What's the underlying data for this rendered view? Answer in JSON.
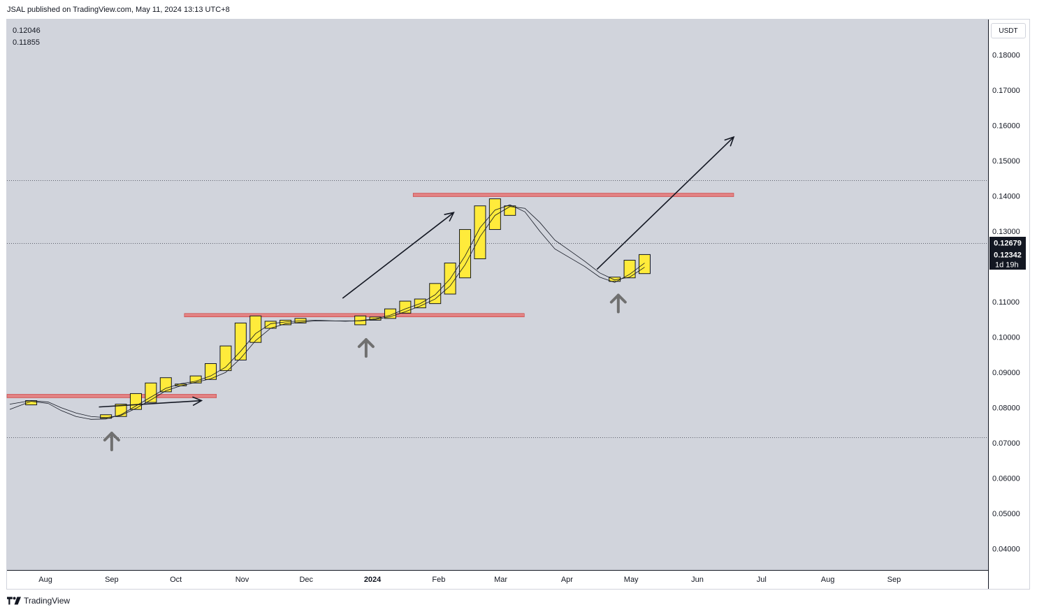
{
  "header": {
    "publisher_text": "JSAL published on TradingView.com, May 11, 2024 13:13 UTC+8"
  },
  "legend": {
    "value1": "0.12046",
    "value2": "0.11855"
  },
  "currency_label": "USDT",
  "footer": {
    "brand": "TradingView",
    "logo_icon": "tradingview-logo-icon"
  },
  "price_labels": {
    "last_price": "0.12679",
    "current": "0.12342",
    "countdown": "1d 19h"
  },
  "colors": {
    "candle_up": "#ffeb3b",
    "zone": "#e57373",
    "background": "#d1d4dc",
    "ma": "#131722",
    "arrow_up": "#707070"
  },
  "chart_data": {
    "type": "candlestick",
    "timeframe": "weekly",
    "ylim": [
      0.034,
      0.19
    ],
    "y_ticks": [
      0.18,
      0.17,
      0.16,
      0.15,
      0.14,
      0.13,
      0.11,
      0.1,
      0.09,
      0.08,
      0.07,
      0.06,
      0.05,
      0.04
    ],
    "y_tick_labels": [
      "0.18000",
      "0.17000",
      "0.16000",
      "0.15000",
      "0.14000",
      "0.13000",
      "0.11000",
      "0.10000",
      "0.09000",
      "0.08000",
      "0.07000",
      "0.06000",
      "0.05000",
      "0.04000"
    ],
    "x_labels": [
      {
        "label": "Aug",
        "date": "2023-08-01",
        "bold": false
      },
      {
        "label": "Sep",
        "date": "2023-09-01",
        "bold": false
      },
      {
        "label": "Oct",
        "date": "2023-10-01",
        "bold": false
      },
      {
        "label": "Nov",
        "date": "2023-11-01",
        "bold": false
      },
      {
        "label": "Dec",
        "date": "2023-12-01",
        "bold": false
      },
      {
        "label": "2024",
        "date": "2024-01-01",
        "bold": true
      },
      {
        "label": "Feb",
        "date": "2024-02-01",
        "bold": false
      },
      {
        "label": "Mar",
        "date": "2024-03-01",
        "bold": false
      },
      {
        "label": "Apr",
        "date": "2024-04-01",
        "bold": false
      },
      {
        "label": "May",
        "date": "2024-05-01",
        "bold": false
      },
      {
        "label": "Jun",
        "date": "2024-06-01",
        "bold": false
      },
      {
        "label": "Jul",
        "date": "2024-07-01",
        "bold": false
      },
      {
        "label": "Aug",
        "date": "2024-08-01",
        "bold": false
      },
      {
        "label": "Sep",
        "date": "2024-09-01",
        "bold": false
      }
    ],
    "candles": [
      {
        "date": "2023-07-24",
        "open": 0.0808,
        "close": 0.082
      },
      {
        "date": "2023-08-28",
        "open": 0.077,
        "close": 0.078
      },
      {
        "date": "2023-09-04",
        "open": 0.0775,
        "close": 0.081
      },
      {
        "date": "2023-09-11",
        "open": 0.0795,
        "close": 0.084
      },
      {
        "date": "2023-09-18",
        "open": 0.0815,
        "close": 0.087
      },
      {
        "date": "2023-09-25",
        "open": 0.0845,
        "close": 0.0885
      },
      {
        "date": "2023-10-02",
        "open": 0.0862,
        "close": 0.0867
      },
      {
        "date": "2023-10-09",
        "open": 0.087,
        "close": 0.089
      },
      {
        "date": "2023-10-16",
        "open": 0.088,
        "close": 0.0925
      },
      {
        "date": "2023-10-23",
        "open": 0.0905,
        "close": 0.0975
      },
      {
        "date": "2023-10-30",
        "open": 0.0935,
        "close": 0.104
      },
      {
        "date": "2023-11-06",
        "open": 0.0985,
        "close": 0.106
      },
      {
        "date": "2023-11-13",
        "open": 0.1025,
        "close": 0.1045
      },
      {
        "date": "2023-11-20",
        "open": 0.1035,
        "close": 0.1048
      },
      {
        "date": "2023-11-27",
        "open": 0.104,
        "close": 0.1053
      },
      {
        "date": "2023-12-25",
        "open": 0.1035,
        "close": 0.106
      },
      {
        "date": "2024-01-01",
        "open": 0.1048,
        "close": 0.1057
      },
      {
        "date": "2024-01-08",
        "open": 0.1053,
        "close": 0.108
      },
      {
        "date": "2024-01-15",
        "open": 0.1068,
        "close": 0.1102
      },
      {
        "date": "2024-01-22",
        "open": 0.1083,
        "close": 0.1108
      },
      {
        "date": "2024-01-29",
        "open": 0.1095,
        "close": 0.1152
      },
      {
        "date": "2024-02-05",
        "open": 0.1122,
        "close": 0.121
      },
      {
        "date": "2024-02-12",
        "open": 0.1168,
        "close": 0.1305
      },
      {
        "date": "2024-02-19",
        "open": 0.1222,
        "close": 0.1372
      },
      {
        "date": "2024-02-26",
        "open": 0.1305,
        "close": 0.1392
      },
      {
        "date": "2024-03-04",
        "open": 0.1345,
        "close": 0.1372
      },
      {
        "date": "2024-04-22",
        "open": 0.1158,
        "close": 0.117
      },
      {
        "date": "2024-04-29",
        "open": 0.1168,
        "close": 0.1218
      },
      {
        "date": "2024-05-06",
        "open": 0.118,
        "close": 0.1234
      }
    ],
    "moving_averages": [
      {
        "series": [
          [
            "2023-07-14",
            0.0795
          ],
          [
            "2023-07-24",
            0.0818
          ],
          [
            "2023-08-01",
            0.0812
          ],
          [
            "2023-08-07",
            0.0792
          ],
          [
            "2023-08-14",
            0.0775
          ],
          [
            "2023-08-21",
            0.0767
          ],
          [
            "2023-08-28",
            0.0768
          ],
          [
            "2023-09-04",
            0.078
          ],
          [
            "2023-09-11",
            0.0805
          ],
          [
            "2023-09-18",
            0.083
          ],
          [
            "2023-09-25",
            0.0855
          ],
          [
            "2023-10-02",
            0.0868
          ],
          [
            "2023-10-09",
            0.0875
          ],
          [
            "2023-10-16",
            0.089
          ],
          [
            "2023-10-23",
            0.0915
          ],
          [
            "2023-10-30",
            0.096
          ],
          [
            "2023-11-06",
            0.101
          ],
          [
            "2023-11-13",
            0.1038
          ],
          [
            "2023-11-20",
            0.1043
          ],
          [
            "2023-11-27",
            0.1046
          ],
          [
            "2023-12-04",
            0.1048
          ],
          [
            "2023-12-18",
            0.1045
          ],
          [
            "2023-12-25",
            0.1047
          ],
          [
            "2024-01-01",
            0.1052
          ],
          [
            "2024-01-08",
            0.1062
          ],
          [
            "2024-01-15",
            0.108
          ],
          [
            "2024-01-22",
            0.1095
          ],
          [
            "2024-01-29",
            0.112
          ],
          [
            "2024-02-05",
            0.1165
          ],
          [
            "2024-02-12",
            0.123
          ],
          [
            "2024-02-19",
            0.131
          ],
          [
            "2024-02-26",
            0.136
          ],
          [
            "2024-03-04",
            0.1375
          ],
          [
            "2024-03-11",
            0.1355
          ],
          [
            "2024-03-18",
            0.13
          ],
          [
            "2024-03-25",
            0.125
          ],
          [
            "2024-04-01",
            0.1225
          ],
          [
            "2024-04-08",
            0.12
          ],
          [
            "2024-04-15",
            0.117
          ],
          [
            "2024-04-22",
            0.1155
          ],
          [
            "2024-04-29",
            0.1178
          ],
          [
            "2024-05-06",
            0.121
          ]
        ]
      },
      {
        "series": [
          [
            "2023-07-14",
            0.081
          ],
          [
            "2023-07-24",
            0.082
          ],
          [
            "2023-08-01",
            0.0816
          ],
          [
            "2023-08-07",
            0.08
          ],
          [
            "2023-08-14",
            0.0785
          ],
          [
            "2023-08-21",
            0.0775
          ],
          [
            "2023-08-28",
            0.0772
          ],
          [
            "2023-09-04",
            0.0778
          ],
          [
            "2023-09-11",
            0.0798
          ],
          [
            "2023-09-18",
            0.0822
          ],
          [
            "2023-09-25",
            0.0848
          ],
          [
            "2023-10-02",
            0.0862
          ],
          [
            "2023-10-09",
            0.0872
          ],
          [
            "2023-10-16",
            0.0882
          ],
          [
            "2023-10-23",
            0.09
          ],
          [
            "2023-10-30",
            0.094
          ],
          [
            "2023-11-06",
            0.099
          ],
          [
            "2023-11-13",
            0.1025
          ],
          [
            "2023-11-20",
            0.1038
          ],
          [
            "2023-11-27",
            0.1042
          ],
          [
            "2023-12-04",
            0.1046
          ],
          [
            "2023-12-18",
            0.1046
          ],
          [
            "2023-12-25",
            0.1046
          ],
          [
            "2024-01-01",
            0.105
          ],
          [
            "2024-01-08",
            0.1058
          ],
          [
            "2024-01-15",
            0.1072
          ],
          [
            "2024-01-22",
            0.1088
          ],
          [
            "2024-01-29",
            0.1108
          ],
          [
            "2024-02-05",
            0.1145
          ],
          [
            "2024-02-12",
            0.1205
          ],
          [
            "2024-02-19",
            0.1285
          ],
          [
            "2024-02-26",
            0.1345
          ],
          [
            "2024-03-04",
            0.137
          ],
          [
            "2024-03-11",
            0.1365
          ],
          [
            "2024-03-18",
            0.1325
          ],
          [
            "2024-03-25",
            0.1275
          ],
          [
            "2024-04-01",
            0.1245
          ],
          [
            "2024-04-08",
            0.1215
          ],
          [
            "2024-04-15",
            0.1182
          ],
          [
            "2024-04-22",
            0.1162
          ],
          [
            "2024-04-29",
            0.117
          ],
          [
            "2024-05-06",
            0.1198
          ]
        ]
      }
    ],
    "zones": [
      {
        "date_from": "2023-07-14",
        "date_to": "2023-10-20",
        "low": 0.0828,
        "high": 0.0838
      },
      {
        "date_from": "2023-10-05",
        "date_to": "2024-03-12",
        "low": 0.1058,
        "high": 0.1067
      },
      {
        "date_from": "2024-01-20",
        "date_to": "2024-06-18",
        "low": 0.14,
        "high": 0.1408
      }
    ],
    "horizontal_lines": [
      {
        "value": 0.1445,
        "style": "dotted"
      },
      {
        "value": 0.1267,
        "style": "dotted"
      },
      {
        "value": 0.0717,
        "style": "dotted"
      }
    ],
    "trend_arrows": [
      {
        "from": [
          "2023-08-26",
          0.0802
        ],
        "to": [
          "2023-10-13",
          0.082
        ]
      },
      {
        "from": [
          "2023-12-18",
          0.111
        ],
        "to": [
          "2024-02-08",
          0.1353
        ]
      },
      {
        "from": [
          "2024-04-15",
          0.1192
        ],
        "to": [
          "2024-06-18",
          0.1567
        ]
      }
    ],
    "up_arrows": [
      {
        "date": "2023-09-01",
        "value": 0.0728
      },
      {
        "date": "2023-12-29",
        "value": 0.0993
      },
      {
        "date": "2024-04-25",
        "value": 0.1119
      }
    ]
  }
}
